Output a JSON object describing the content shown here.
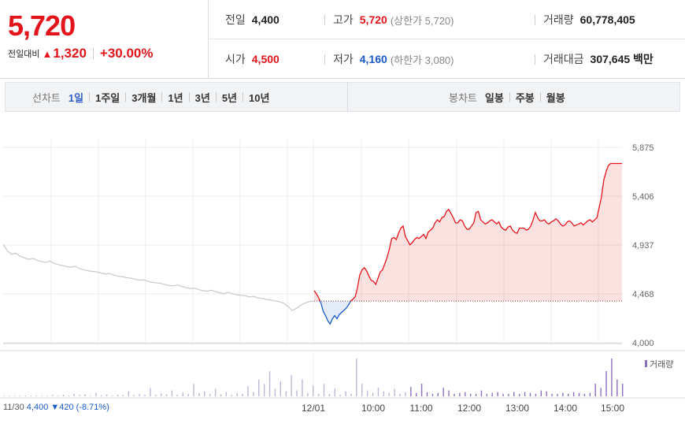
{
  "quote": {
    "price": "5,720",
    "change_label": "전일대비",
    "change_value": "1,320",
    "change_percent": "+30.00%",
    "colors": {
      "up": "#e4141b",
      "down": "#1a5ac8"
    },
    "stats": {
      "prev_label": "전일",
      "prev_value": "4,400",
      "high_label": "고가",
      "high_value": "5,720",
      "upper_limit": "(상한가 5,720)",
      "volume_label": "거래량",
      "volume_value": "60,778,405",
      "open_label": "시가",
      "open_value": "4,500",
      "low_label": "저가",
      "low_value": "4,160",
      "lower_limit": "(하한가 3,080)",
      "amount_label": "거래대금",
      "amount_value": "307,645 백만"
    }
  },
  "toolbar": {
    "line_title": "선차트",
    "line_items": [
      "1일",
      "1주일",
      "3개월",
      "1년",
      "3년",
      "5년",
      "10년"
    ],
    "candle_title": "봉차트",
    "candle_items": [
      "일봉",
      "주봉",
      "월봉"
    ]
  },
  "chart_data": {
    "type": "line",
    "y_axis_ticks": [
      "5,875",
      "5,406",
      "4,937",
      "4,468",
      "4,000"
    ],
    "ylim": [
      4000,
      5875
    ],
    "x_axis_ticks": [
      "12/01",
      "10:00",
      "11:00",
      "12:00",
      "13:00",
      "14:00",
      "15:00"
    ],
    "baseline": 4400,
    "volume_legend": "거래량",
    "prev_day": {
      "date": "11/30",
      "close": "4,400",
      "change": "▼420 (-8.71%)",
      "series": [
        4945,
        4880,
        4850,
        4860,
        4830,
        4815,
        4800,
        4810,
        4790,
        4780,
        4770,
        4785,
        4760,
        4750,
        4740,
        4730,
        4725,
        4735,
        4710,
        4700,
        4690,
        4685,
        4680,
        4670,
        4660,
        4665,
        4650,
        4640,
        4635,
        4625,
        4620,
        4610,
        4600,
        4605,
        4590,
        4580,
        4575,
        4570,
        4560,
        4550,
        4545,
        4555,
        4540,
        4530,
        4520,
        4525,
        4510,
        4500,
        4495,
        4505,
        4490,
        4480,
        4470,
        4485,
        4470,
        4460,
        4455,
        4450,
        4440,
        4445,
        4430,
        4425,
        4415,
        4410,
        4400,
        4395,
        4380,
        4350,
        4310,
        4330,
        4360,
        4380,
        4395,
        4400
      ]
    },
    "today": {
      "series": [
        4500,
        4470,
        4430,
        4380,
        4300,
        4260,
        4210,
        4180,
        4230,
        4260,
        4230,
        4270,
        4290,
        4310,
        4330,
        4360,
        4400,
        4420,
        4440,
        4530,
        4650,
        4700,
        4720,
        4690,
        4640,
        4600,
        4590,
        4560,
        4620,
        4680,
        4700,
        4760,
        4820,
        4900,
        5000,
        5010,
        4990,
        5050,
        5100,
        5120,
        5020,
        4980,
        4940,
        4960,
        4990,
        5010,
        5000,
        5020,
        5040,
        5000,
        5060,
        5080,
        5100,
        5150,
        5180,
        5160,
        5200,
        5210,
        5260,
        5280,
        5240,
        5200,
        5150,
        5150,
        5180,
        5170,
        5120,
        5090,
        5090,
        5120,
        5150,
        5250,
        5260,
        5180,
        5160,
        5140,
        5150,
        5170,
        5180,
        5160,
        5140,
        5160,
        5110,
        5090,
        5080,
        5110,
        5120,
        5080,
        5060,
        5050,
        5100,
        5100,
        5100,
        5080,
        5090,
        5120,
        5180,
        5250,
        5200,
        5170,
        5170,
        5180,
        5150,
        5140,
        5160,
        5170,
        5190,
        5170,
        5140,
        5120,
        5130,
        5160,
        5170,
        5150,
        5120,
        5130,
        5140,
        5150,
        5130,
        5150,
        5170,
        5180,
        5160,
        5180,
        5200,
        5300,
        5400,
        5560,
        5640,
        5700,
        5720,
        5720,
        5720,
        5720,
        5720,
        5720
      ]
    },
    "volume": [
      1,
      1,
      0,
      1,
      2,
      1,
      1,
      2,
      1,
      3,
      2,
      4,
      2,
      6,
      3,
      5,
      2,
      8,
      3,
      5,
      2,
      4,
      3,
      12,
      3,
      6,
      4,
      20,
      4,
      7,
      5,
      14,
      4,
      9,
      6,
      30,
      8,
      12,
      6,
      18,
      5,
      10,
      4,
      8,
      6,
      24,
      10,
      40,
      30,
      60,
      18,
      36,
      12,
      50,
      14,
      40,
      8,
      25,
      6,
      30,
      6,
      18,
      4,
      12,
      6,
      90,
      30,
      14,
      8,
      20,
      12,
      8,
      18,
      6,
      10,
      22,
      8,
      30,
      10,
      6,
      8,
      20,
      14,
      6,
      8,
      10,
      6,
      6,
      14,
      6,
      8,
      10,
      6,
      6,
      10,
      6,
      10,
      8,
      6,
      14,
      12,
      6,
      6,
      8,
      6,
      10,
      8,
      6,
      8,
      30,
      20,
      60,
      90,
      40,
      30
    ]
  }
}
